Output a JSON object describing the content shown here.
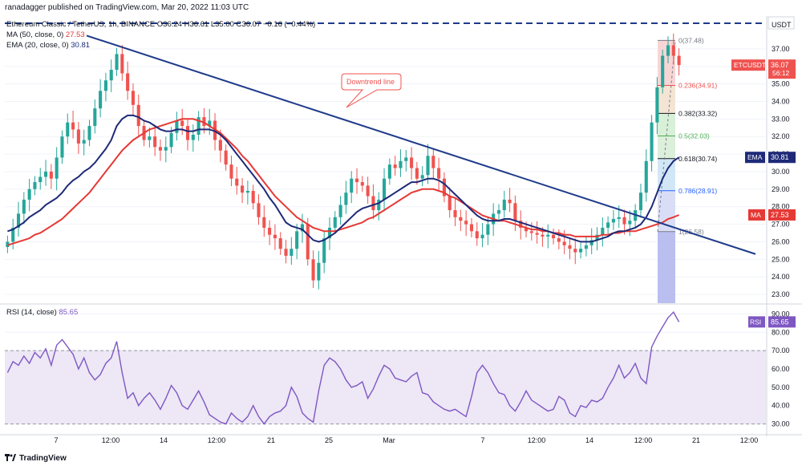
{
  "header": {
    "published_by": "ranadagger published on TradingView.com, Mar 20, 2022 11:03 UTC",
    "symbol_line": "Ethereum Classic / TetherUS, 1h, BINANCE  O36.24  H36.61  L35.00  C36.07  −0.16 (−0.44%)",
    "ma_label": "MA (50, close, 0)",
    "ma_value": "27.53",
    "ema_label": "EMA (20, close, 0)",
    "ema_value": "30.81",
    "rsi_label": "RSI (14, close)",
    "rsi_value": "85.65",
    "brand": "TradingView"
  },
  "colors": {
    "up": "#26a69a",
    "down": "#ef5350",
    "ema": "#1e2a78",
    "ma": "#e53935",
    "trendline": "#1e3a8a",
    "rsi": "#7e57c2",
    "rsi_band": "#ede7f6",
    "axis_text": "#131722",
    "grid": "#f0f3fa"
  },
  "chart_data": [
    {
      "type": "candlestick",
      "title": "Ethereum Classic / TetherUS, 1h, BINANCE",
      "currency": "USDT",
      "ylim": [
        22.5,
        38.5
      ],
      "y_ticks": [
        "37.00",
        "36.00",
        "35.00",
        "34.00",
        "33.00",
        "32.00",
        "31.00",
        "30.00",
        "29.00",
        "28.00",
        "27.00",
        "26.00",
        "25.00",
        "24.00",
        "23.00"
      ],
      "x_ticks": [
        "7",
        "12:00",
        "14",
        "12:00",
        "21",
        "25",
        "Mar",
        "7",
        "12:00",
        "14",
        "12:00",
        "21",
        "12:00"
      ],
      "last_price_label": "ETCUSDT",
      "last_price": "36.07",
      "countdown": "56:12",
      "ema_label": "EMA",
      "ema_value": "30.81",
      "ma_label": "MA",
      "ma_value": "27.53",
      "close": [
        26.0,
        26.8,
        27.6,
        28.4,
        29.0,
        29.4,
        29.7,
        30.0,
        29.6,
        30.8,
        32.0,
        32.8,
        32.4,
        31.6,
        31.8,
        32.6,
        33.6,
        34.6,
        35.2,
        35.8,
        36.7,
        35.6,
        34.6,
        33.8,
        32.6,
        31.8,
        32.0,
        31.4,
        31.2,
        31.4,
        32.2,
        32.9,
        32.6,
        31.8,
        32.1,
        33.1,
        32.6,
        32.9,
        31.8,
        31.2,
        30.4,
        29.6,
        29.2,
        28.8,
        28.9,
        28.2,
        27.4,
        26.8,
        26.4,
        26.2,
        25.6,
        25.2,
        25.6,
        26.6,
        27.0,
        25.0,
        23.8,
        24.8,
        26.2,
        26.8,
        27.4,
        28.1,
        28.8,
        29.6,
        29.4,
        29.2,
        28.6,
        27.8,
        28.4,
        29.6,
        30.4,
        30.2,
        30.6,
        30.8,
        30.2,
        29.6,
        29.8,
        30.9,
        30.2,
        29.6,
        28.6,
        27.8,
        27.4,
        27.2,
        27.0,
        26.6,
        26.2,
        26.4,
        27.0,
        27.6,
        27.8,
        28.4,
        28.2,
        27.2,
        26.8,
        26.6,
        26.5,
        26.4,
        26.3,
        26.4,
        26.2,
        26.0,
        25.8,
        25.6,
        25.4,
        25.6,
        25.8,
        26.1,
        26.4,
        26.8,
        27.1,
        27.3,
        27.4,
        27.0,
        27.2,
        27.8,
        28.8,
        30.6,
        32.8,
        34.8,
        36.6,
        37.2,
        36.6,
        36.07
      ],
      "ema20": [
        26.6,
        26.7,
        26.9,
        27.1,
        27.4,
        27.6,
        27.8,
        28.1,
        28.3,
        28.5,
        28.8,
        29.2,
        29.5,
        29.7,
        30.0,
        30.2,
        30.5,
        30.9,
        31.3,
        31.8,
        32.6,
        33.0,
        33.2,
        33.2,
        33.1,
        32.9,
        32.8,
        32.6,
        32.4,
        32.3,
        32.3,
        32.4,
        32.4,
        32.3,
        32.3,
        32.4,
        32.4,
        32.4,
        32.3,
        32.1,
        31.8,
        31.4,
        31.0,
        30.6,
        30.2,
        29.8,
        29.4,
        29.0,
        28.5,
        28.1,
        27.6,
        27.1,
        26.9,
        26.8,
        26.7,
        26.4,
        26.1,
        26.0,
        26.1,
        26.3,
        26.5,
        26.8,
        27.1,
        27.4,
        27.7,
        27.9,
        28.0,
        28.1,
        28.2,
        28.4,
        28.6,
        28.8,
        29.0,
        29.2,
        29.4,
        29.4,
        29.5,
        29.6,
        29.6,
        29.5,
        29.3,
        29.0,
        28.7,
        28.4,
        28.1,
        27.8,
        27.5,
        27.3,
        27.2,
        27.2,
        27.2,
        27.3,
        27.3,
        27.2,
        27.1,
        27.0,
        26.9,
        26.8,
        26.7,
        26.6,
        26.5,
        26.4,
        26.3,
        26.2,
        26.1,
        26.0,
        26.0,
        26.0,
        26.1,
        26.2,
        26.3,
        26.5,
        26.6,
        26.6,
        26.7,
        26.8,
        27.0,
        27.4,
        28.0,
        28.8,
        29.6,
        30.2,
        30.6,
        30.81
      ],
      "ma50": [
        25.8,
        25.9,
        26.0,
        26.1,
        26.2,
        26.4,
        26.5,
        26.7,
        26.9,
        27.1,
        27.3,
        27.6,
        27.9,
        28.2,
        28.5,
        28.8,
        29.2,
        29.6,
        30.0,
        30.4,
        30.8,
        31.2,
        31.5,
        31.8,
        32.0,
        32.2,
        32.4,
        32.5,
        32.6,
        32.7,
        32.8,
        32.9,
        33.0,
        33.0,
        33.0,
        32.9,
        32.8,
        32.6,
        32.4,
        32.2,
        31.9,
        31.6,
        31.3,
        30.9,
        30.6,
        30.2,
        29.8,
        29.4,
        29.0,
        28.6,
        28.3,
        28.0,
        27.7,
        27.4,
        27.2,
        27.0,
        26.8,
        26.7,
        26.6,
        26.6,
        26.6,
        26.7,
        26.8,
        26.9,
        27.0,
        27.1,
        27.3,
        27.4,
        27.6,
        27.8,
        28.0,
        28.2,
        28.4,
        28.6,
        28.8,
        28.9,
        29.0,
        29.0,
        29.0,
        28.9,
        28.8,
        28.6,
        28.5,
        28.3,
        28.1,
        27.9,
        27.7,
        27.5,
        27.4,
        27.3,
        27.2,
        27.2,
        27.1,
        27.0,
        26.9,
        26.8,
        26.7,
        26.7,
        26.6,
        26.6,
        26.5,
        26.5,
        26.4,
        26.4,
        26.3,
        26.3,
        26.3,
        26.3,
        26.3,
        26.4,
        26.4,
        26.5,
        26.5,
        26.6,
        26.6,
        26.6,
        26.7,
        26.8,
        26.9,
        27.0,
        27.1,
        27.3,
        27.4,
        27.53
      ],
      "annotations": {
        "downtrend_label": "Downtrend line",
        "fib_levels": [
          {
            "label": "0(37.48)",
            "value": 37.48,
            "color": "#787b86"
          },
          {
            "label": "0.236(34.91)",
            "value": 34.91,
            "color": "#ef5350"
          },
          {
            "label": "0.382(33.32)",
            "value": 33.32,
            "color": "#131722"
          },
          {
            "label": "0.5(32.03)",
            "value": 32.03,
            "color": "#4caf50"
          },
          {
            "label": "0.618(30.74)",
            "value": 30.74,
            "color": "#131722"
          },
          {
            "label": "0.786(28.91)",
            "value": 28.91,
            "color": "#2962ff"
          },
          {
            "label": "1(26.58)",
            "value": 26.58,
            "color": "#787b86"
          }
        ],
        "fib_range": [
          26.58,
          37.48
        ]
      }
    },
    {
      "type": "line",
      "title": "RSI (14, close)",
      "ylim": [
        25,
        95
      ],
      "y_ticks": [
        "90.00",
        "80.00",
        "70.00",
        "60.00",
        "50.00",
        "40.00",
        "30.00"
      ],
      "band": [
        30,
        70
      ],
      "label": "RSI",
      "last_value": "85.65",
      "values": [
        58,
        64,
        62,
        67,
        63,
        69,
        66,
        71,
        62,
        73,
        76,
        72,
        68,
        60,
        66,
        58,
        54,
        57,
        63,
        66,
        75,
        58,
        44,
        47,
        40,
        44,
        47,
        43,
        38,
        44,
        51,
        47,
        40,
        38,
        43,
        48,
        42,
        35,
        33,
        31,
        30,
        36,
        33,
        31,
        34,
        40,
        34,
        30,
        34,
        36,
        37,
        40,
        50,
        45,
        36,
        33,
        31,
        48,
        62,
        66,
        64,
        60,
        54,
        50,
        51,
        53,
        44,
        49,
        56,
        62,
        60,
        55,
        54,
        53,
        56,
        58,
        47,
        46,
        42,
        40,
        38,
        37,
        38,
        36,
        34,
        45,
        58,
        62,
        58,
        52,
        47,
        46,
        40,
        37,
        42,
        48,
        43,
        41,
        39,
        37,
        38,
        45,
        43,
        36,
        34,
        40,
        39,
        43,
        42,
        44,
        50,
        55,
        62,
        55,
        58,
        63,
        55,
        52,
        72,
        78,
        83,
        88,
        91,
        85.65
      ]
    }
  ]
}
